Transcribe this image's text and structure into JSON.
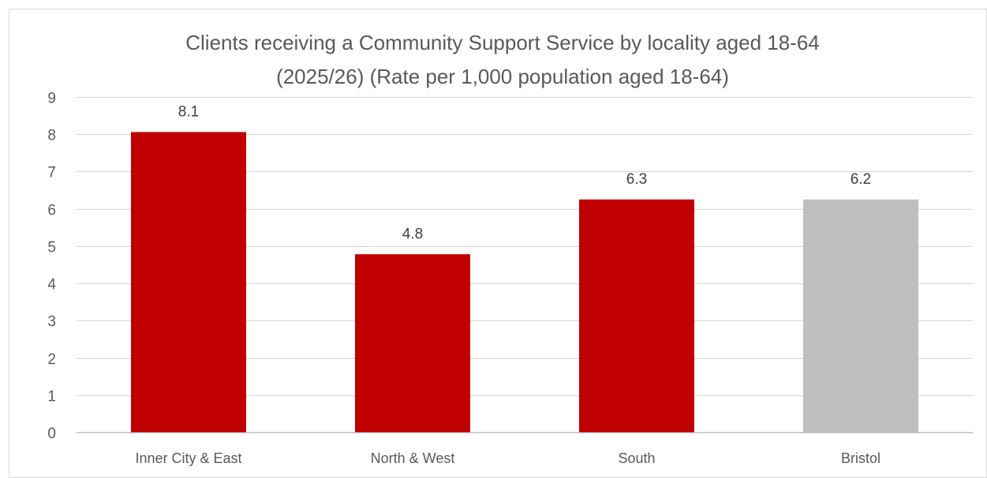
{
  "chart_data": {
    "type": "bar",
    "title_lines": [
      "Clients receiving a Community Support Service by locality aged 18-64",
      "(2025/26) (Rate per 1,000 population aged 18-64)"
    ],
    "categories": [
      "Inner City & East",
      "North & West",
      "South",
      "Bristol"
    ],
    "values": [
      8.06,
      4.78,
      6.25,
      6.25
    ],
    "data_labels": [
      "8.1",
      "4.8",
      "6.3",
      "6.2"
    ],
    "bar_colors": [
      "#c00000",
      "#c00000",
      "#c00000",
      "#bfbfbf"
    ],
    "ylim": [
      0,
      9
    ],
    "yticks": [
      0,
      1,
      2,
      3,
      4,
      5,
      6,
      7,
      8,
      9
    ],
    "xlabel": "",
    "ylabel": "",
    "grid": true,
    "legend": "none",
    "gridline_color": "#d9d9d9",
    "axis_color": "#bfbfbf"
  }
}
